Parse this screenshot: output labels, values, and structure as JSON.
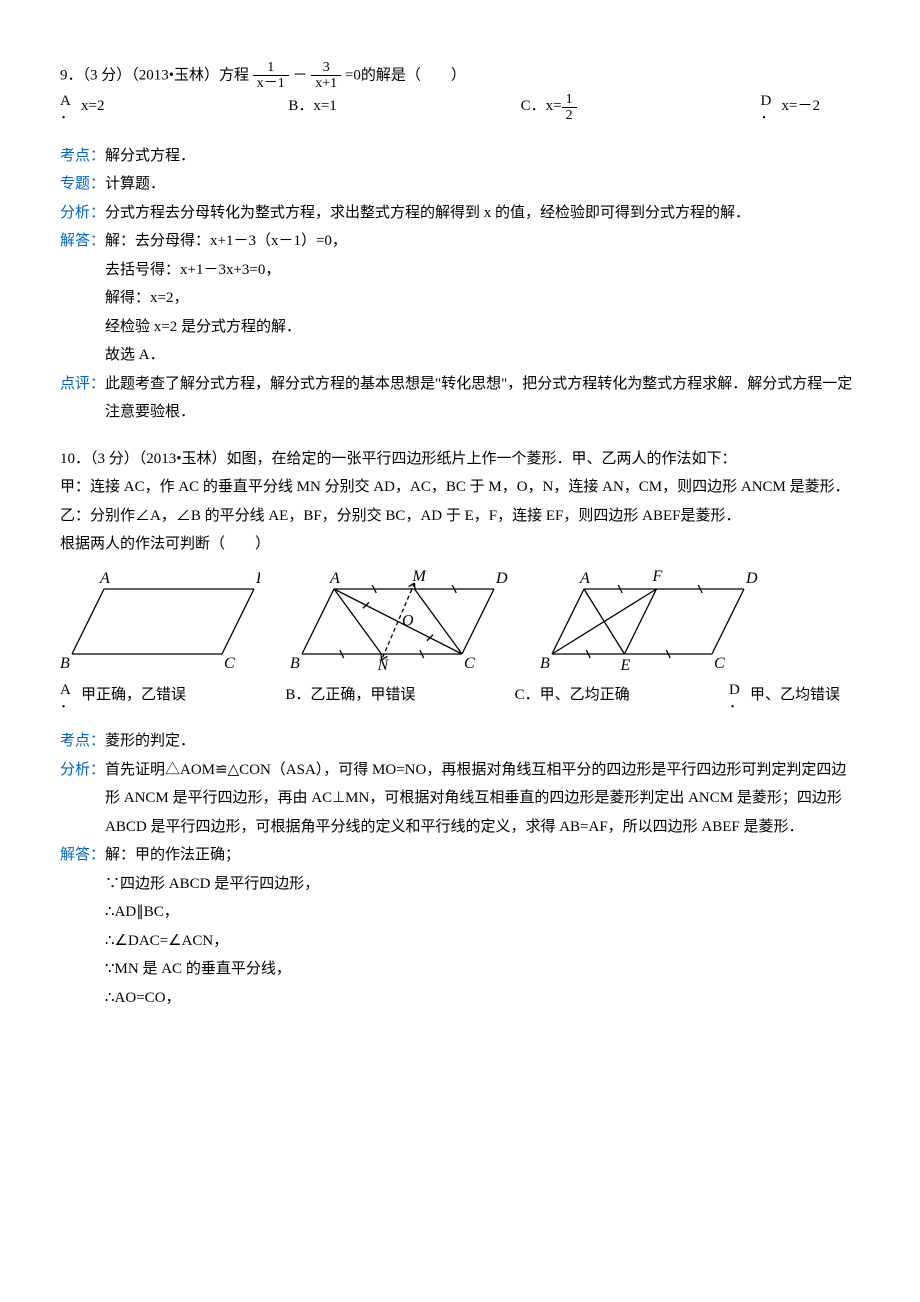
{
  "q9": {
    "prefix": "9．（3 分）（2013•玉林）方程",
    "eq_num1": "1",
    "eq_den1": "x－1",
    "minus": " － ",
    "eq_num2": "3",
    "eq_den2": "x+1",
    "suffix": "=0的解是（　　）",
    "optA_letter": "A",
    "optA_dot": "．",
    "optA_text": "x=2",
    "optB_letter": "B．",
    "optB_text": "x=1",
    "optC_letter": "C．",
    "optC_prefix": "x=",
    "optC_num": "1",
    "optC_den": "2",
    "optD_letter": "D",
    "optD_dot": "．",
    "optD_text": "x=－2",
    "kaodian_label": "考点：",
    "kaodian_text": "解分式方程．",
    "zhuanti_label": "专题：",
    "zhuanti_text": "计算题．",
    "fenxi_label": "分析：",
    "fenxi_text": "分式方程去分母转化为整式方程，求出整式方程的解得到 x 的值，经检验即可得到分式方程的解．",
    "jieda_label": "解答：",
    "jieda_l1": "解：去分母得：x+1－3（x－1）=0，",
    "jieda_l2": "去括号得：x+1－3x+3=0，",
    "jieda_l3": "解得：x=2，",
    "jieda_l4": "经检验 x=2 是分式方程的解．",
    "jieda_l5": "故选 A．",
    "dianping_label": "点评：",
    "dianping_text": "此题考查了解分式方程，解分式方程的基本思想是\"转化思想\"，把分式方程转化为整式方程求解．解分式方程一定注意要验根．"
  },
  "q10": {
    "stem_l1": "10．（3 分）（2013•玉林）如图，在给定的一张平行四边形纸片上作一个菱形．甲、乙两人的作法如下：",
    "stem_l2": "甲：连接 AC，作 AC 的垂直平分线 MN 分别交 AD，AC，BC 于 M，O，N，连接 AN，CM，则四边形 ANCM 是菱形．",
    "stem_l3": "乙：分别作∠A，∠B 的平分线 AE，BF，分别交 BC，AD 于 E，F，连接 EF，则四边形 ABEF是菱形．",
    "stem_l4": "根据两人的作法可判断（　　）",
    "optA_letter": "A",
    "optA_dot": "．",
    "optA_text": "甲正确，乙错误",
    "optB_letter": "B．",
    "optB_text": "乙正确，甲错误",
    "optC_letter": "C．",
    "optC_text": "甲、乙均正确",
    "optD_letter": "D",
    "optD_dot": "．",
    "optD_text": "甲、乙均错误",
    "kaodian_label": "考点：",
    "kaodian_text": "菱形的判定．",
    "fenxi_label": "分析：",
    "fenxi_text": "首先证明△AOM≌△CON（ASA），可得 MO=NO，再根据对角线互相平分的四边形是平行四边形可判定判定四边形 ANCM 是平行四边形，再由 AC⊥MN，可根据对角线互相垂直的四边形是菱形判定出 ANCM 是菱形；四边形 ABCD 是平行四边形，可根据角平分线的定义和平行线的定义，求得 AB=AF，所以四边形 ABEF 是菱形．",
    "jieda_label": "解答：",
    "jieda_l1": "解：甲的作法正确；",
    "jieda_l2": "∵四边形 ABCD 是平行四边形，",
    "jieda_l3": "∴AD∥BC，",
    "jieda_l4": "∴∠DAC=∠ACN，",
    "jieda_l5": "∵MN 是 AC 的垂直平分线，",
    "jieda_l6": "∴AO=CO，"
  },
  "diagram": {
    "labels": {
      "A": "A",
      "B": "B",
      "C": "C",
      "D": "D",
      "M": "M",
      "N": "N",
      "O": "O",
      "E": "E",
      "F": "F"
    },
    "stroke": "#000000",
    "stroke_width": 1.3,
    "dash": "4 3",
    "font_family": "Times New Roman, serif",
    "font_style": "italic",
    "font_size": 16
  }
}
